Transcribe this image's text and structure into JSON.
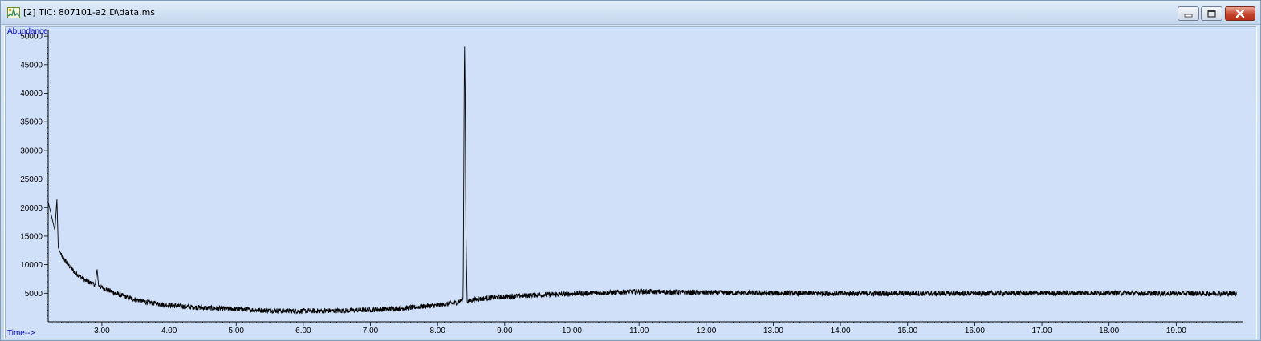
{
  "window": {
    "title": "[2] TIC: 807101-a2.D\\data.ms",
    "icon": "chromatogram-app-icon"
  },
  "colors": {
    "plot_background": "#d0e0f8",
    "trace": "#000000",
    "axis_label": "#0000cc"
  },
  "chart_data": {
    "type": "line",
    "title": "",
    "xlabel": "Time-->",
    "ylabel": "Abundance",
    "xlim": [
      2.2,
      20.0
    ],
    "ylim": [
      0,
      51000
    ],
    "x_ticks": [
      3.0,
      4.0,
      5.0,
      6.0,
      7.0,
      8.0,
      9.0,
      10.0,
      11.0,
      12.0,
      13.0,
      14.0,
      15.0,
      16.0,
      17.0,
      18.0,
      19.0
    ],
    "x_tick_labels": [
      "3.00",
      "4.00",
      "5.00",
      "6.00",
      "7.00",
      "8.00",
      "9.00",
      "10.00",
      "11.00",
      "12.00",
      "13.00",
      "14.00",
      "15.00",
      "16.00",
      "17.00",
      "18.00",
      "19.00"
    ],
    "y_ticks": [
      5000,
      10000,
      15000,
      20000,
      25000,
      30000,
      35000,
      40000,
      45000,
      50000
    ],
    "y_tick_labels": [
      "5000",
      "10000",
      "15000",
      "20000",
      "25000",
      "30000",
      "35000",
      "40000",
      "45000",
      "50000"
    ],
    "grid": false,
    "series": [
      {
        "x": [
          2.2,
          2.25,
          2.3,
          2.33,
          2.35,
          2.4,
          2.5,
          2.6,
          2.75,
          2.9,
          2.93,
          2.95,
          3.0,
          3.2,
          3.4,
          3.6,
          3.8,
          4.0,
          4.3,
          4.6,
          5.0,
          5.4,
          5.8,
          6.2,
          6.6,
          7.0,
          7.4,
          7.8,
          8.1,
          8.3,
          8.38,
          8.4,
          8.41,
          8.42,
          8.44,
          8.5,
          8.7,
          9.0,
          9.5,
          10.0,
          10.5,
          11.0,
          11.5,
          12.0,
          12.5,
          13.0,
          13.5,
          14.0,
          14.5,
          15.0,
          15.5,
          16.0,
          16.5,
          17.0,
          17.5,
          18.0,
          18.5,
          19.0,
          19.5,
          19.9
        ],
        "y": [
          21000,
          18500,
          16000,
          21500,
          13000,
          11500,
          10000,
          8600,
          7300,
          6400,
          9200,
          6300,
          6000,
          5000,
          4200,
          3600,
          3200,
          2900,
          2600,
          2400,
          2200,
          2000,
          1900,
          1900,
          1950,
          2100,
          2300,
          2700,
          3000,
          3400,
          4000,
          49500,
          40000,
          17000,
          3500,
          3800,
          4100,
          4400,
          4700,
          4900,
          5100,
          5300,
          5200,
          5100,
          5050,
          5000,
          5000,
          4950,
          4950,
          4950,
          4950,
          4950,
          5000,
          5000,
          5050,
          5050,
          5000,
          4950,
          4950,
          4950
        ]
      }
    ]
  }
}
